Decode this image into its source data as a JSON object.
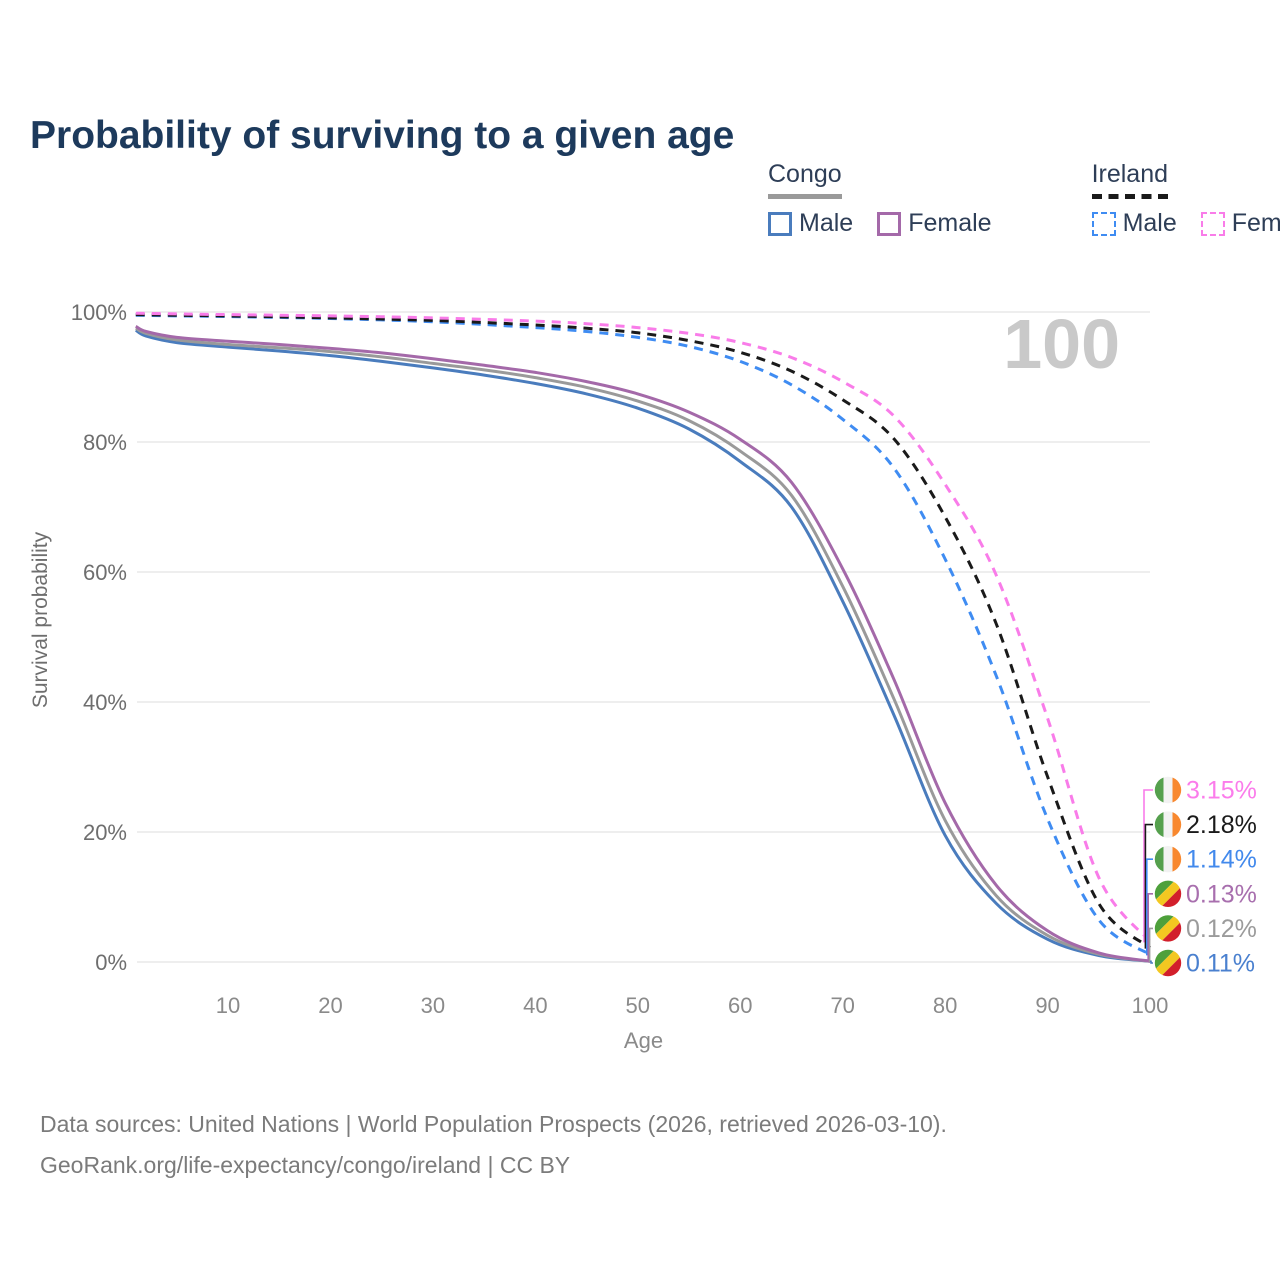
{
  "title": "Probability of surviving to a given age",
  "legend": {
    "groups": [
      {
        "name": "Congo",
        "line_style": "solid",
        "line_color": "#9a9a9a",
        "items": [
          {
            "label": "Male",
            "color": "#4a7cbd",
            "style": "solid"
          },
          {
            "label": "Female",
            "color": "#a469a9",
            "style": "solid"
          }
        ]
      },
      {
        "name": "Ireland",
        "line_style": "dashed",
        "line_color": "#1a1a1a",
        "items": [
          {
            "label": "Male",
            "color": "#3f8cf2",
            "style": "dashed"
          },
          {
            "label": "Female",
            "color": "#f97ce9",
            "style": "dashed"
          }
        ]
      }
    ]
  },
  "chart_data": {
    "type": "line",
    "title": "Probability of surviving to a given age",
    "xlabel": "Age",
    "ylabel": "Survival probability",
    "xlim": [
      0,
      100
    ],
    "ylim": [
      0,
      100
    ],
    "grid": "horizontal",
    "legend_position": "top-right",
    "watermark": "100",
    "x_ticks": [
      10,
      20,
      30,
      40,
      50,
      60,
      70,
      80,
      90,
      100
    ],
    "y_ticks": [
      {
        "value": 0,
        "label": "0%"
      },
      {
        "value": 20,
        "label": "20%"
      },
      {
        "value": 40,
        "label": "40%"
      },
      {
        "value": 60,
        "label": "60%"
      },
      {
        "value": 80,
        "label": "80%"
      },
      {
        "value": 100,
        "label": "100%"
      }
    ],
    "series": [
      {
        "name": "Congo Male",
        "country": "Congo",
        "sex": "Male",
        "color": "#4a7cbd",
        "dash": false,
        "end_label": "0.11%",
        "label_color": "#4a80cf",
        "flag": "congo",
        "points": [
          [
            1,
            97.2
          ],
          [
            2,
            96.3
          ],
          [
            5,
            95.3
          ],
          [
            10,
            94.6
          ],
          [
            15,
            94.0
          ],
          [
            20,
            93.3
          ],
          [
            25,
            92.4
          ],
          [
            30,
            91.4
          ],
          [
            35,
            90.3
          ],
          [
            40,
            89.0
          ],
          [
            45,
            87.4
          ],
          [
            50,
            85.2
          ],
          [
            55,
            82.0
          ],
          [
            60,
            77.0
          ],
          [
            65,
            70.0
          ],
          [
            70,
            55.5
          ],
          [
            75,
            38.0
          ],
          [
            80,
            19.5
          ],
          [
            85,
            9.0
          ],
          [
            90,
            3.5
          ],
          [
            95,
            1.0
          ],
          [
            100,
            0.11
          ]
        ]
      },
      {
        "name": "Congo",
        "country": "Congo",
        "sex": "Both sexes",
        "color": "#9a9a9a",
        "dash": false,
        "end_label": "0.12%",
        "label_color": "#9b9b9b",
        "flag": "congo",
        "points": [
          [
            1,
            97.5
          ],
          [
            2,
            96.7
          ],
          [
            5,
            95.7
          ],
          [
            10,
            95.0
          ],
          [
            15,
            94.5
          ],
          [
            20,
            93.9
          ],
          [
            25,
            93.1
          ],
          [
            30,
            92.1
          ],
          [
            35,
            91.1
          ],
          [
            40,
            89.9
          ],
          [
            45,
            88.4
          ],
          [
            50,
            86.3
          ],
          [
            55,
            83.3
          ],
          [
            60,
            78.6
          ],
          [
            65,
            71.8
          ],
          [
            70,
            57.8
          ],
          [
            75,
            40.5
          ],
          [
            80,
            21.8
          ],
          [
            85,
            10.2
          ],
          [
            90,
            4.1
          ],
          [
            95,
            1.2
          ],
          [
            100,
            0.12
          ]
        ]
      },
      {
        "name": "Congo Female",
        "country": "Congo",
        "sex": "Female",
        "color": "#a469a9",
        "dash": false,
        "end_label": "0.13%",
        "label_color": "#a86fae",
        "flag": "congo",
        "points": [
          [
            1,
            97.8
          ],
          [
            2,
            97.0
          ],
          [
            5,
            96.1
          ],
          [
            10,
            95.5
          ],
          [
            15,
            95.0
          ],
          [
            20,
            94.4
          ],
          [
            25,
            93.7
          ],
          [
            30,
            92.8
          ],
          [
            35,
            91.8
          ],
          [
            40,
            90.7
          ],
          [
            45,
            89.3
          ],
          [
            50,
            87.4
          ],
          [
            55,
            84.6
          ],
          [
            60,
            80.4
          ],
          [
            65,
            73.8
          ],
          [
            70,
            60.5
          ],
          [
            75,
            43.5
          ],
          [
            80,
            24.5
          ],
          [
            85,
            11.8
          ],
          [
            90,
            4.8
          ],
          [
            95,
            1.4
          ],
          [
            100,
            0.13
          ]
        ]
      },
      {
        "name": "Ireland Male",
        "country": "Ireland",
        "sex": "Male",
        "color": "#3f8cf2",
        "dash": true,
        "end_label": "1.14%",
        "label_color": "#4289ec",
        "flag": "ireland",
        "points": [
          [
            1,
            99.5
          ],
          [
            5,
            99.4
          ],
          [
            10,
            99.3
          ],
          [
            20,
            99.0
          ],
          [
            30,
            98.5
          ],
          [
            40,
            97.6
          ],
          [
            45,
            97.0
          ],
          [
            50,
            96.1
          ],
          [
            55,
            94.7
          ],
          [
            60,
            92.4
          ],
          [
            65,
            88.8
          ],
          [
            70,
            83.5
          ],
          [
            75,
            76.0
          ],
          [
            80,
            62.0
          ],
          [
            85,
            44.0
          ],
          [
            90,
            22.0
          ],
          [
            95,
            6.5
          ],
          [
            100,
            1.14
          ]
        ]
      },
      {
        "name": "Ireland",
        "country": "Ireland",
        "sex": "Both sexes",
        "color": "#1a1a1a",
        "dash": true,
        "end_label": "2.18%",
        "label_color": "#1a1a1a",
        "flag": "ireland",
        "points": [
          [
            1,
            99.6
          ],
          [
            5,
            99.5
          ],
          [
            10,
            99.4
          ],
          [
            20,
            99.1
          ],
          [
            30,
            98.7
          ],
          [
            40,
            98.0
          ],
          [
            45,
            97.5
          ],
          [
            50,
            96.8
          ],
          [
            55,
            95.6
          ],
          [
            60,
            93.8
          ],
          [
            65,
            90.9
          ],
          [
            70,
            86.5
          ],
          [
            75,
            80.5
          ],
          [
            80,
            68.5
          ],
          [
            85,
            52.0
          ],
          [
            90,
            28.5
          ],
          [
            95,
            9.0
          ],
          [
            100,
            2.18
          ]
        ]
      },
      {
        "name": "Ireland Female",
        "country": "Ireland",
        "sex": "Female",
        "color": "#f97ce9",
        "dash": true,
        "end_label": "3.15%",
        "label_color": "#fb7ceb",
        "flag": "ireland",
        "points": [
          [
            1,
            99.8
          ],
          [
            5,
            99.7
          ],
          [
            10,
            99.6
          ],
          [
            20,
            99.4
          ],
          [
            30,
            99.1
          ],
          [
            40,
            98.6
          ],
          [
            45,
            98.2
          ],
          [
            50,
            97.6
          ],
          [
            55,
            96.7
          ],
          [
            60,
            95.3
          ],
          [
            65,
            93.0
          ],
          [
            70,
            89.3
          ],
          [
            75,
            84.0
          ],
          [
            80,
            73.5
          ],
          [
            85,
            59.5
          ],
          [
            90,
            37.5
          ],
          [
            95,
            13.0
          ],
          [
            100,
            3.15
          ]
        ]
      }
    ],
    "flags": {
      "ireland": [
        "#55a04d",
        "#f2f2f2",
        "#f8882f"
      ],
      "congo": [
        "#4da03b",
        "#f3c821",
        "#d21f2b"
      ]
    }
  },
  "footer": {
    "line1": "Data sources: United Nations | World Population Prospects (2026, retrieved 2026-03-10).",
    "line2": "GeoRank.org/life-expectancy/congo/ireland | CC BY"
  }
}
